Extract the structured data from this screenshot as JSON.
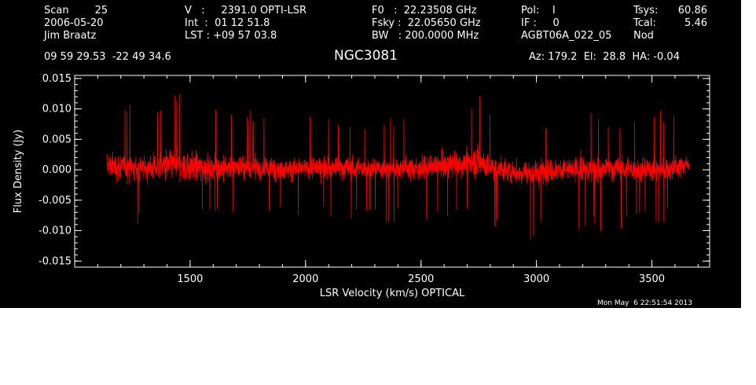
{
  "header": {
    "col1": [
      "Scan        25",
      "2006-05-20",
      "Jim Braatz"
    ],
    "col2": [
      "V   :     2391.0 OPTI-LSR",
      "Int  :  01 12 51.8",
      "LST : +09 57 03.8"
    ],
    "col3": [
      "F0   :  22.23508 GHz",
      "Fsky :  22.05650 GHz",
      "BW   : 200.0000 MHz"
    ],
    "col4": [
      "Pol:    I",
      "IF :     0",
      "AGBT06A_022_05"
    ],
    "col5_labels": [
      "Tsys:",
      "Tcal:",
      "Nod"
    ],
    "col5_values": [
      "60.86",
      "5.46",
      ""
    ],
    "coords": "09 59 29.53  -22 49 34.6",
    "source": "NGC3081",
    "pointing": "Az: 179.2  El:  28.8  HA: -0.04",
    "timestamp": "Mon May  6 22:51:54 2013"
  },
  "colors": {
    "background": "#000000",
    "axes": "#ffffff",
    "series": "#ff0000",
    "page": "#ffffff"
  },
  "chart_data": {
    "type": "line",
    "title": "NGC3081",
    "xlabel": "LSR Velocity (km/s) OPTICAL",
    "ylabel": "Flux Density (Jy)",
    "xlim": [
      1000,
      3750
    ],
    "ylim": [
      -0.016,
      0.0155
    ],
    "x_ticks": [
      1500,
      2000,
      2500,
      3000,
      3500
    ],
    "y_ticks": [
      -0.015,
      -0.01,
      -0.005,
      0.0,
      0.005,
      0.01,
      0.015
    ],
    "y_tick_labels": [
      "-0.015",
      "-0.010",
      "-0.005",
      "0.000",
      "0.005",
      "0.010",
      "0.015"
    ],
    "grid": false,
    "series": [
      {
        "x_range": [
          1140,
          3660
        ],
        "points_per_envelope": 12,
        "envelope": {
          "x": [
            1140,
            1200,
            1300,
            1400,
            1500,
            1600,
            1700,
            1800,
            1900,
            2000,
            2100,
            2200,
            2300,
            2400,
            2500,
            2600,
            2700,
            2750,
            2800,
            2900,
            3000,
            3100,
            3200,
            3300,
            3400,
            3500,
            3600,
            3660
          ],
          "mean": [
            0.0008,
            0.0005,
            0.0003,
            0.0008,
            0.0005,
            0.0003,
            0.0005,
            0.0002,
            0.0002,
            0.0002,
            0.0004,
            0.0002,
            0.0003,
            0.0003,
            0.0003,
            0.0006,
            0.0012,
            0.0014,
            0.0004,
            -0.0004,
            -0.0004,
            0.0,
            0.0,
            0.0002,
            0.0001,
            0.0001,
            0.0002,
            0.0012
          ],
          "max": [
            0.0105,
            0.012,
            0.0095,
            0.0125,
            0.0125,
            0.011,
            0.0095,
            0.01,
            0.0085,
            0.009,
            0.0095,
            0.0095,
            0.0075,
            0.0095,
            0.009,
            0.01,
            0.012,
            0.0145,
            0.01,
            0.009,
            0.0095,
            0.0095,
            0.011,
            0.009,
            0.0095,
            0.01,
            0.01,
            0.0065
          ],
          "min": [
            -0.0115,
            -0.01,
            -0.0085,
            -0.009,
            -0.009,
            -0.0085,
            -0.0085,
            -0.0095,
            -0.0075,
            -0.0085,
            -0.008,
            -0.0085,
            -0.009,
            -0.009,
            -0.0095,
            -0.0085,
            -0.009,
            -0.008,
            -0.0095,
            -0.011,
            -0.012,
            -0.0095,
            -0.011,
            -0.0105,
            -0.01,
            -0.009,
            -0.009,
            -0.0065
          ]
        }
      }
    ]
  }
}
